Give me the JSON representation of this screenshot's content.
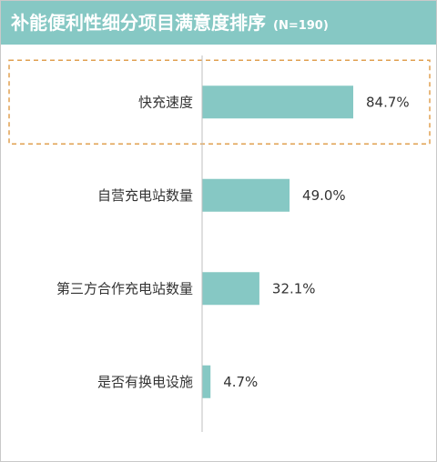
{
  "title": "补能便利性细分项目满意度排序",
  "sample": "(N=190)",
  "colors": {
    "header": "#86c8c4",
    "bar": "#86c8c4",
    "highlight": "#e0a050"
  },
  "chart_data": {
    "type": "bar",
    "orientation": "horizontal",
    "categories": [
      "快充速度",
      "自营充电站数量",
      "第三方合作充电站数量",
      "是否有换电设施"
    ],
    "values": [
      84.7,
      49.0,
      32.1,
      4.7
    ],
    "value_labels": [
      "84.7%",
      "49.0%",
      "32.1%",
      "4.7%"
    ],
    "xlim": [
      0,
      100
    ],
    "grid": false,
    "highlighted_category": "快充速度"
  }
}
